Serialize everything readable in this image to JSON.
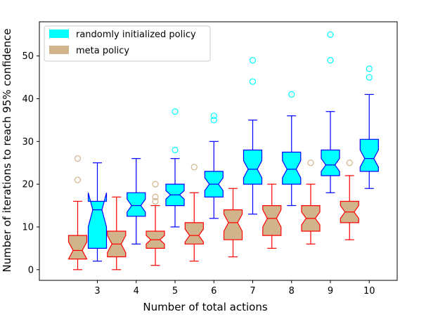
{
  "chart_data": {
    "type": "box",
    "title": "",
    "xlabel": "Number of total actions",
    "ylabel": "Number of iterations to reach 95% confidence",
    "categories": [
      "3",
      "4",
      "5",
      "6",
      "7",
      "8",
      "9",
      "10"
    ],
    "ylim": [
      -2.5,
      58
    ],
    "yticks": [
      0,
      10,
      20,
      30,
      40,
      50
    ],
    "notched": true,
    "legend": {
      "position": "top-left",
      "entries": [
        "randomly initialized policy",
        "meta policy"
      ]
    },
    "series": [
      {
        "name": "meta policy",
        "facecolor": "#d2b48c",
        "edgecolor": "#ff0000",
        "fliercolor": "#d2b48c",
        "boxes": [
          {
            "category": "3",
            "whislo": 0,
            "q1": 2.5,
            "med": 4.5,
            "q3": 8,
            "whishi": 16,
            "notchlo": 2.5,
            "notchhi": 6.5,
            "fliers": [
              21,
              26
            ]
          },
          {
            "category": "4",
            "whislo": 0,
            "q1": 3,
            "med": 6,
            "q3": 9,
            "whishi": 17,
            "notchlo": 4,
            "notchhi": 8,
            "fliers": []
          },
          {
            "category": "5",
            "whislo": 1,
            "q1": 5,
            "med": 7,
            "q3": 9,
            "whishi": 15,
            "notchlo": 6,
            "notchhi": 8,
            "fliers": [
              16,
              17,
              20
            ]
          },
          {
            "category": "6",
            "whislo": 2,
            "q1": 6,
            "med": 8,
            "q3": 11,
            "whishi": 18,
            "notchlo": 6.5,
            "notchhi": 9.5,
            "fliers": [
              24
            ]
          },
          {
            "category": "7",
            "whislo": 3,
            "q1": 7,
            "med": 11,
            "q3": 14,
            "whishi": 19,
            "notchlo": 9,
            "notchhi": 13,
            "fliers": []
          },
          {
            "category": "8",
            "whislo": 5,
            "q1": 8,
            "med": 12,
            "q3": 15,
            "whishi": 20,
            "notchlo": 10,
            "notchhi": 14,
            "fliers": []
          },
          {
            "category": "9",
            "whislo": 6,
            "q1": 9,
            "med": 12,
            "q3": 15,
            "whishi": 20,
            "notchlo": 10.5,
            "notchhi": 13.5,
            "fliers": [
              25
            ]
          },
          {
            "category": "10",
            "whislo": 7,
            "q1": 11,
            "med": 13.5,
            "q3": 16,
            "whishi": 22,
            "notchlo": 12,
            "notchhi": 15,
            "fliers": [
              25
            ]
          }
        ]
      },
      {
        "name": "randomly initialized policy",
        "facecolor": "#00ffff",
        "edgecolor": "#0000ff",
        "fliercolor": "#00ffff",
        "boxes": [
          {
            "category": "3",
            "whislo": 2,
            "q1": 5,
            "med": 14,
            "q3": 16,
            "whishi": 25,
            "notchlo": 10,
            "notchhi": 18,
            "fliers": []
          },
          {
            "category": "4",
            "whislo": 6,
            "q1": 12.5,
            "med": 15,
            "q3": 18,
            "whishi": 26,
            "notchlo": 13.5,
            "notchhi": 16.5,
            "fliers": []
          },
          {
            "category": "5",
            "whislo": 10,
            "q1": 15,
            "med": 17.5,
            "q3": 20,
            "whishi": 26,
            "notchlo": 16.5,
            "notchhi": 18.5,
            "fliers": [
              28,
              37
            ]
          },
          {
            "category": "6",
            "whislo": 12,
            "q1": 17,
            "med": 20,
            "q3": 23,
            "whishi": 30,
            "notchlo": 18.5,
            "notchhi": 21.5,
            "fliers": [
              35,
              36
            ]
          },
          {
            "category": "7",
            "whislo": 13,
            "q1": 20,
            "med": 23.5,
            "q3": 28,
            "whishi": 35,
            "notchlo": 21.5,
            "notchhi": 25.5,
            "fliers": [
              44,
              49
            ]
          },
          {
            "category": "8",
            "whislo": 15,
            "q1": 20,
            "med": 23.5,
            "q3": 27.5,
            "whishi": 36,
            "notchlo": 21.5,
            "notchhi": 25.5,
            "fliers": [
              41
            ]
          },
          {
            "category": "9",
            "whislo": 18,
            "q1": 22,
            "med": 24.5,
            "q3": 28,
            "whishi": 37,
            "notchlo": 23,
            "notchhi": 26,
            "fliers": [
              49,
              55
            ]
          },
          {
            "category": "10",
            "whislo": 19,
            "q1": 23,
            "med": 26,
            "q3": 30.5,
            "whishi": 41,
            "notchlo": 24,
            "notchhi": 28,
            "fliers": [
              45,
              47
            ]
          }
        ]
      }
    ]
  }
}
